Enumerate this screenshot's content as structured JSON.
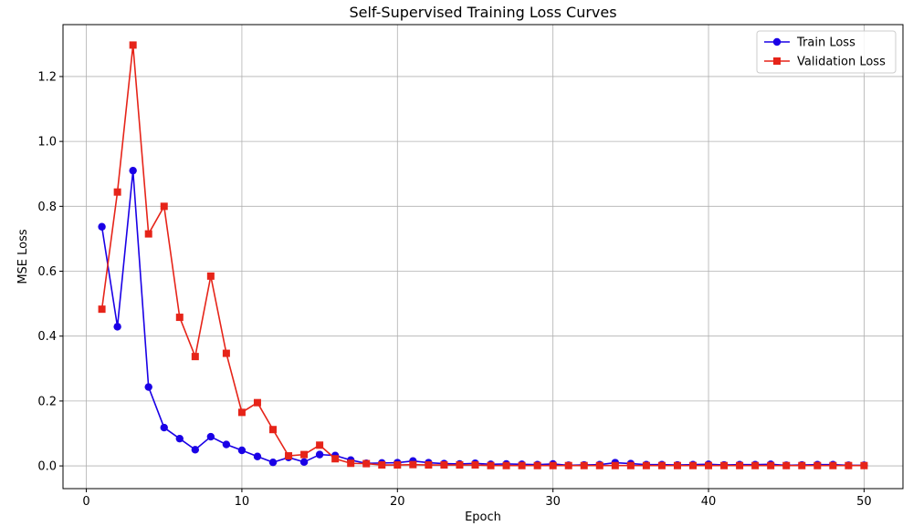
{
  "chart_data": {
    "type": "line",
    "title": "Self-Supervised Training Loss Curves",
    "xlabel": "Epoch",
    "ylabel": "MSE Loss",
    "xlim": [
      -1.5,
      52.5
    ],
    "ylim": [
      -0.07,
      1.36
    ],
    "xticks": [
      0,
      10,
      20,
      30,
      40,
      50
    ],
    "yticks": [
      0.0,
      0.2,
      0.4,
      0.6,
      0.8,
      1.0,
      1.2
    ],
    "grid": true,
    "legend": "top-right",
    "x": [
      1,
      2,
      3,
      4,
      5,
      6,
      7,
      8,
      9,
      10,
      11,
      12,
      13,
      14,
      15,
      16,
      17,
      18,
      19,
      20,
      21,
      22,
      23,
      24,
      25,
      26,
      27,
      28,
      29,
      30,
      31,
      32,
      33,
      34,
      35,
      36,
      37,
      38,
      39,
      40,
      41,
      42,
      43,
      44,
      45,
      46,
      47,
      48,
      49,
      50
    ],
    "series": [
      {
        "name": "Train Loss",
        "color": "#1a00e6",
        "marker": "circle",
        "values": [
          0.737,
          0.429,
          0.91,
          0.243,
          0.118,
          0.084,
          0.05,
          0.09,
          0.066,
          0.048,
          0.029,
          0.011,
          0.026,
          0.012,
          0.035,
          0.032,
          0.018,
          0.008,
          0.009,
          0.01,
          0.015,
          0.01,
          0.007,
          0.006,
          0.008,
          0.005,
          0.006,
          0.005,
          0.004,
          0.006,
          0.002,
          0.003,
          0.004,
          0.01,
          0.007,
          0.004,
          0.004,
          0.003,
          0.004,
          0.005,
          0.003,
          0.004,
          0.004,
          0.005,
          0.002,
          0.003,
          0.004,
          0.004,
          0.002,
          0.002
        ]
      },
      {
        "name": "Validation Loss",
        "color": "#e62419",
        "marker": "square",
        "values": [
          0.483,
          0.844,
          1.297,
          0.715,
          0.8,
          0.458,
          0.337,
          0.585,
          0.347,
          0.165,
          0.195,
          0.112,
          0.031,
          0.035,
          0.064,
          0.022,
          0.008,
          0.007,
          0.003,
          0.003,
          0.004,
          0.003,
          0.003,
          0.003,
          0.003,
          0.001,
          0.001,
          0.001,
          0.001,
          0.001,
          0.001,
          0.001,
          0.001,
          0.001,
          0.001,
          0.001,
          0.001,
          0.001,
          0.001,
          0.001,
          0.001,
          0.001,
          0.001,
          0.001,
          0.001,
          0.001,
          0.001,
          0.001,
          0.001,
          0.001
        ]
      }
    ]
  }
}
